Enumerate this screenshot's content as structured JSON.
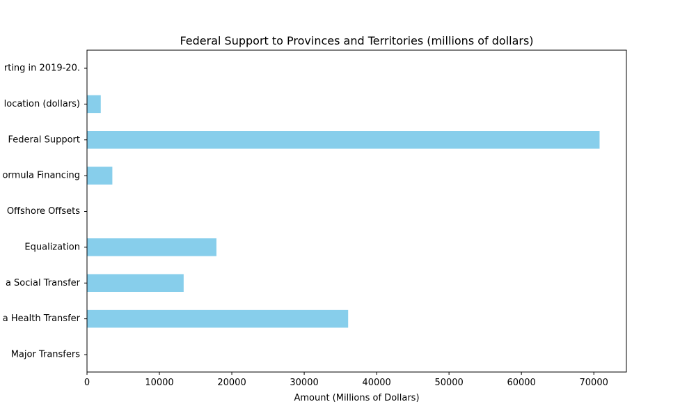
{
  "chart_data": {
    "type": "bar",
    "orientation": "horizontal",
    "title": "Federal Support to Provinces and Territories (millions of dollars)",
    "xlabel": "Amount (Millions of Dollars)",
    "ylabel": "",
    "categories": [
      "Major Transfers",
      "a Health Transfer",
      "a Social Transfer",
      "Equalization",
      "Offshore Offsets",
      "ormula Financing",
      "Federal Support",
      "location (dollars)",
      "rting in 2019-20."
    ],
    "values": [
      0,
      36068,
      13348,
      17880,
      0,
      3500,
      70796,
      1900,
      0
    ],
    "xlim": [
      0,
      74500
    ],
    "xticks": [
      0,
      10000,
      20000,
      30000,
      40000,
      50000,
      60000,
      70000
    ],
    "bar_color": "#87CEEB",
    "grid": false
  }
}
